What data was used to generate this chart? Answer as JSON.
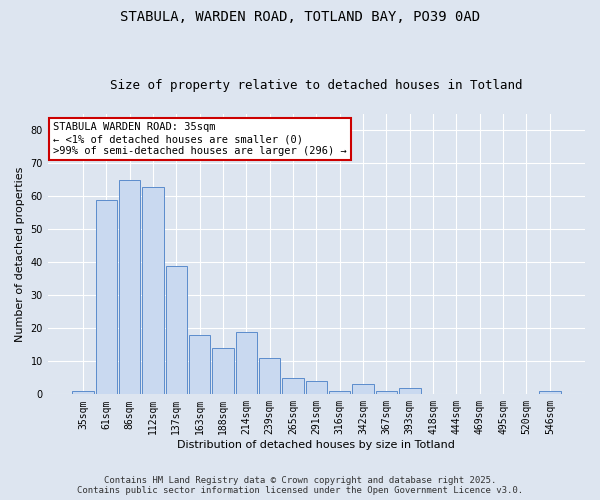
{
  "title_line1": "STABULA, WARDEN ROAD, TOTLAND BAY, PO39 0AD",
  "title_line2": "Size of property relative to detached houses in Totland",
  "xlabel": "Distribution of detached houses by size in Totland",
  "ylabel": "Number of detached properties",
  "categories": [
    "35sqm",
    "61sqm",
    "86sqm",
    "112sqm",
    "137sqm",
    "163sqm",
    "188sqm",
    "214sqm",
    "239sqm",
    "265sqm",
    "291sqm",
    "316sqm",
    "342sqm",
    "367sqm",
    "393sqm",
    "418sqm",
    "444sqm",
    "469sqm",
    "495sqm",
    "520sqm",
    "546sqm"
  ],
  "values": [
    1,
    59,
    65,
    63,
    39,
    18,
    14,
    19,
    11,
    5,
    4,
    1,
    3,
    1,
    2,
    0,
    0,
    0,
    0,
    0,
    1
  ],
  "bar_color": "#c9d9f0",
  "bar_edge_color": "#5b8ccc",
  "annotation_text": "STABULA WARDEN ROAD: 35sqm\n← <1% of detached houses are smaller (0)\n>99% of semi-detached houses are larger (296) →",
  "annotation_box_color": "#ffffff",
  "annotation_box_edge_color": "#cc0000",
  "ylim": [
    0,
    85
  ],
  "yticks": [
    0,
    10,
    20,
    30,
    40,
    50,
    60,
    70,
    80
  ],
  "background_color": "#dde5f0",
  "footer_line1": "Contains HM Land Registry data © Crown copyright and database right 2025.",
  "footer_line2": "Contains public sector information licensed under the Open Government Licence v3.0.",
  "title_fontsize": 10,
  "subtitle_fontsize": 9,
  "axis_label_fontsize": 8,
  "tick_fontsize": 7,
  "annotation_fontsize": 7.5,
  "footer_fontsize": 6.5
}
